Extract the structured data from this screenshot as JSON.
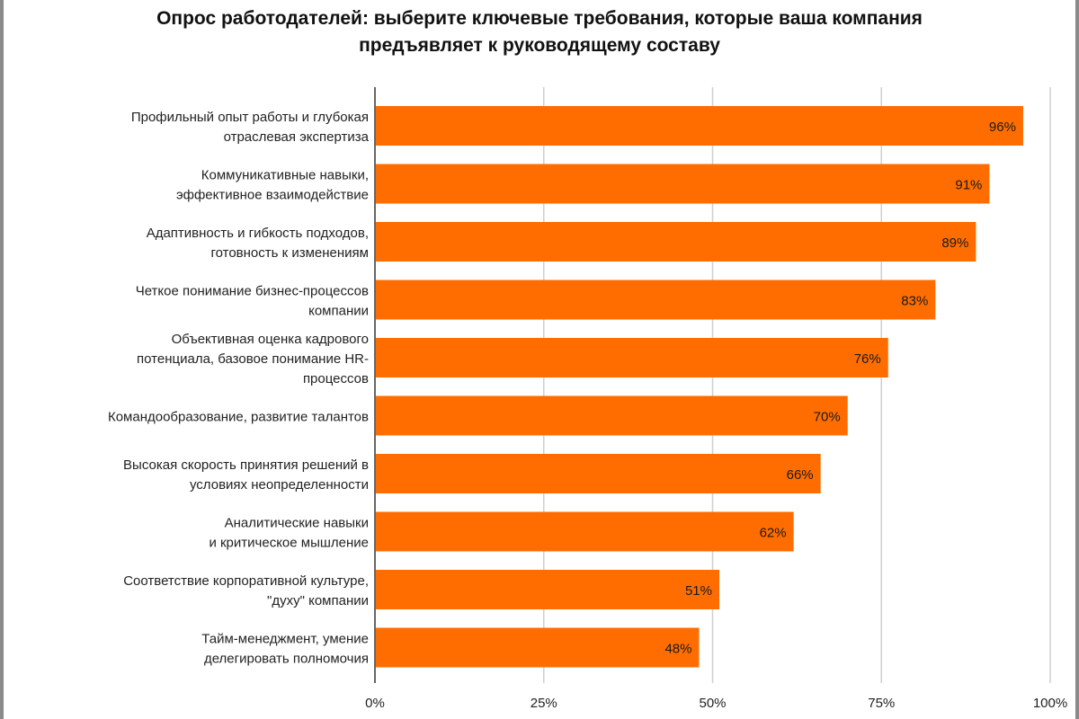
{
  "chart_data": {
    "type": "bar",
    "orientation": "horizontal",
    "title_lines": [
      "Опрос работодателей: выберите ключевые требования, которые ваша компания",
      "предъявляет к руководящему составу"
    ],
    "categories": [
      [
        "Профильный опыт работы и глубокая",
        "отраслевая экспертиза"
      ],
      [
        "Коммуникативные навыки,",
        "эффективное взаимодействие"
      ],
      [
        "Адаптивность и гибкость подходов,",
        "готовность к изменениям"
      ],
      [
        "Четкое понимание бизнес-процессов",
        "компании"
      ],
      [
        "Объективная оценка кадрового",
        "потенциала, базовое понимание HR-",
        "процессов"
      ],
      [
        "Командообразование, развитие талантов"
      ],
      [
        "Высокая скорость принятия решений в",
        "условиях неопределенности"
      ],
      [
        "Аналитические навыки",
        "и критическое мышление"
      ],
      [
        "Соответствие корпоративной культуре,",
        "\"духу\" компании"
      ],
      [
        "Тайм-менеджмент, умение",
        "делегировать полномочия"
      ]
    ],
    "values": [
      96,
      91,
      89,
      83,
      76,
      70,
      66,
      62,
      51,
      48
    ],
    "data_labels": [
      "96%",
      "91%",
      "89%",
      "83%",
      "76%",
      "70%",
      "66%",
      "62%",
      "51%",
      "48%"
    ],
    "xlim": [
      0,
      100
    ],
    "xticks": [
      0,
      25,
      50,
      75,
      100
    ],
    "xtick_labels": [
      "0%",
      "25%",
      "50%",
      "75%",
      "100%"
    ],
    "grid": true,
    "bar_color": "#ff6d00",
    "grid_color": "#d0d0d0",
    "axis_color": "#333333",
    "text_color": "#222222"
  }
}
